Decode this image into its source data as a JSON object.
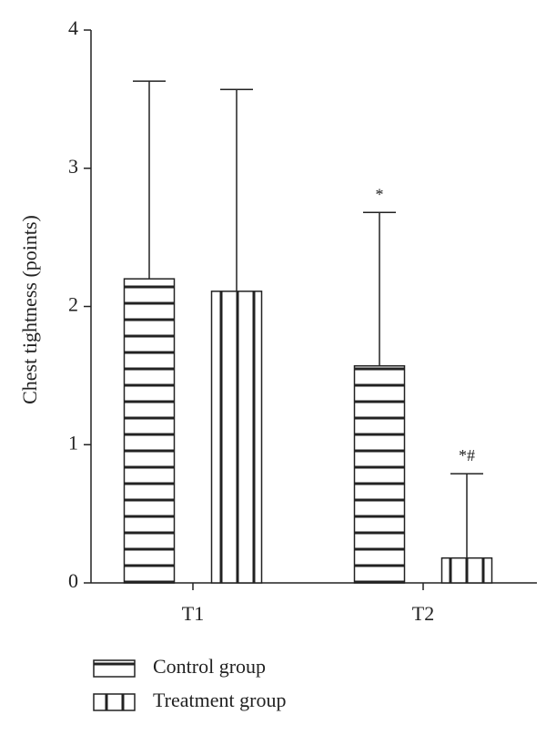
{
  "chart_data": {
    "type": "bar",
    "y_label": "Chest tightness (points)",
    "categories": [
      "T1",
      "T2"
    ],
    "series": [
      {
        "name": "Control group",
        "pattern": "horizontal",
        "values": [
          2.2,
          1.57
        ],
        "errors": [
          1.43,
          1.11
        ],
        "marks": [
          null,
          "*"
        ]
      },
      {
        "name": "Treatment group",
        "pattern": "vertical",
        "values": [
          2.11,
          0.18
        ],
        "errors": [
          1.46,
          0.61
        ],
        "marks": [
          null,
          "*#"
        ]
      }
    ],
    "ylim": [
      0,
      4
    ],
    "yticks": [
      0,
      1,
      2,
      3,
      4
    ]
  }
}
